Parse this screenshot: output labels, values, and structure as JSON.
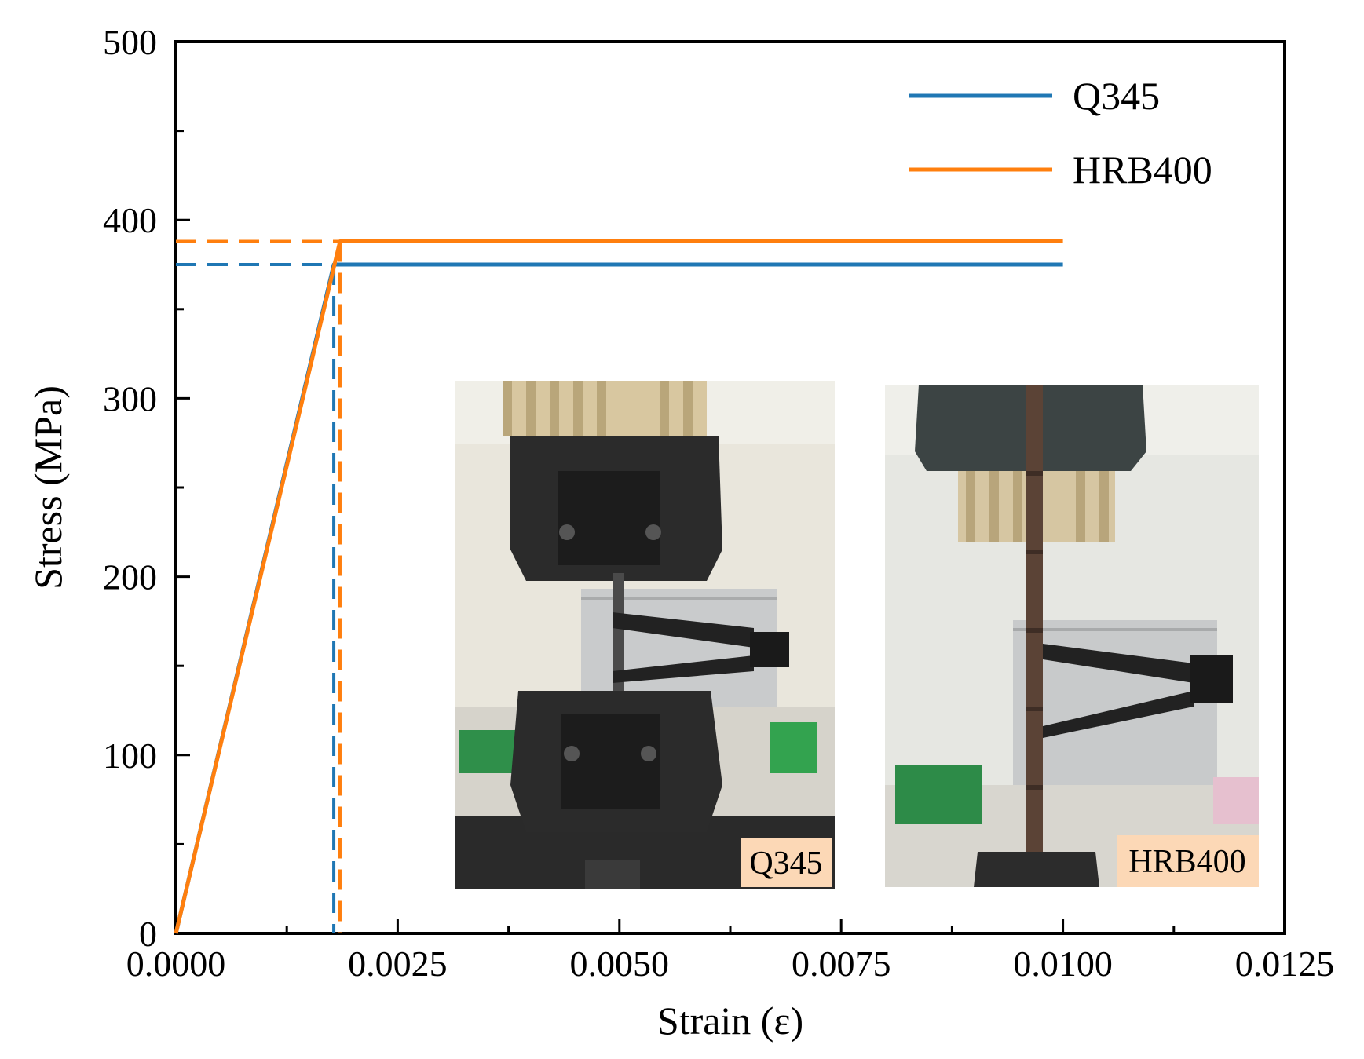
{
  "chart_data": {
    "type": "line",
    "title": "",
    "xlabel": "Strain (ε)",
    "ylabel": "Stress (MPa)",
    "xlim": [
      0,
      0.0125
    ],
    "ylim": [
      0,
      500
    ],
    "x_ticks": [
      "0.0000",
      "0.0025",
      "0.0050",
      "0.0075",
      "0.0100",
      "0.0125"
    ],
    "y_ticks": [
      "0",
      "100",
      "200",
      "300",
      "400",
      "500"
    ],
    "grid": false,
    "legend_position": "top-right",
    "series": [
      {
        "name": "Q345",
        "color": "#1f77b4",
        "x": [
          0,
          0.00178,
          0.01
        ],
        "y": [
          0,
          375,
          375
        ],
        "yield_strain": 0.00178,
        "yield_stress": 375
      },
      {
        "name": "HRB400",
        "color": "#ff7f0e",
        "x": [
          0,
          0.00185,
          0.01
        ],
        "y": [
          0,
          388,
          388
        ],
        "yield_strain": 0.00185,
        "yield_stress": 388
      }
    ],
    "insets": [
      {
        "label": "Q345",
        "content": "photo of tensile test on steel plate specimen with extensometer"
      },
      {
        "label": "HRB400",
        "content": "photo of tensile test on rebar specimen with extensometer"
      }
    ]
  }
}
